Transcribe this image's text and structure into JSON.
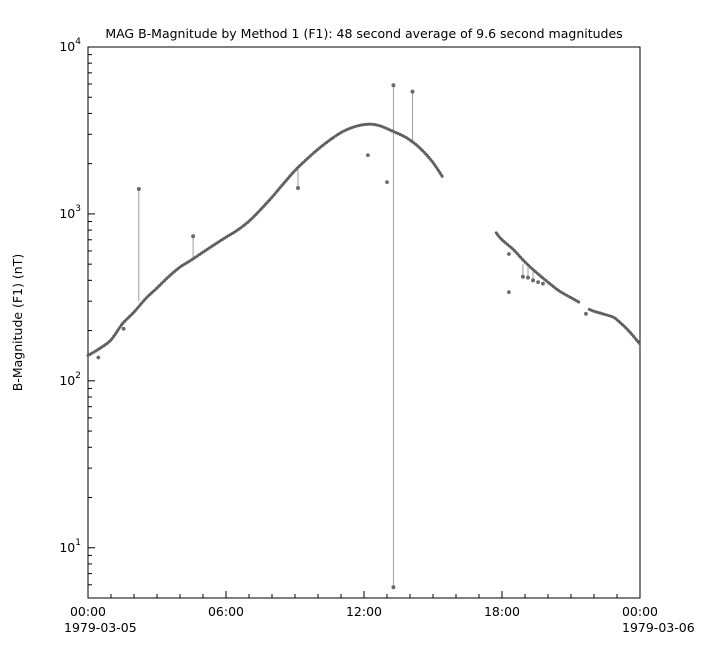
{
  "chart_data": {
    "type": "scatter",
    "title": "MAG  B-Magnitude by Method 1 (F1): 48 second average of 9.6 second magnitudes",
    "ylabel": "B-Magnitude (F1) (nT)",
    "x_axis": {
      "unit": "hours",
      "range": [
        0,
        24
      ],
      "major_ticks": [
        0,
        6,
        12,
        18,
        24
      ],
      "major_labels": [
        "00:00",
        "06:00",
        "12:00",
        "18:00",
        "00:00"
      ],
      "minor_step_hours": 1,
      "date_left": "1979-03-05",
      "date_right": "1979-03-06"
    },
    "y_axis": {
      "scale": "log",
      "range": [
        5,
        10000
      ],
      "major_ticks": [
        10,
        100,
        1000,
        10000
      ],
      "major_exponents": [
        1,
        2,
        3,
        4
      ],
      "minor_mantissas": [
        2,
        3,
        4,
        5,
        6,
        7,
        8,
        9
      ]
    },
    "style": {
      "curve_color": "#606060",
      "spike_color": "#9e9e9e",
      "dot_color": "#6a6a6a",
      "axis_color": "#000000",
      "background": "#ffffff"
    },
    "series": [
      {
        "name": "b-magnitude-segment-1",
        "points": [
          [
            0,
            142
          ],
          [
            0.5,
            156
          ],
          [
            1,
            176
          ],
          [
            1.5,
            220
          ],
          [
            2,
            258
          ],
          [
            2.5,
            310
          ],
          [
            3,
            360
          ],
          [
            3.5,
            420
          ],
          [
            4,
            480
          ],
          [
            4.5,
            530
          ],
          [
            5,
            590
          ],
          [
            5.5,
            655
          ],
          [
            6,
            725
          ],
          [
            6.5,
            800
          ],
          [
            7,
            905
          ],
          [
            7.5,
            1060
          ],
          [
            8,
            1260
          ],
          [
            8.5,
            1520
          ],
          [
            9,
            1820
          ],
          [
            9.5,
            2120
          ],
          [
            10,
            2440
          ],
          [
            10.5,
            2760
          ],
          [
            11,
            3070
          ],
          [
            11.5,
            3300
          ],
          [
            12,
            3430
          ],
          [
            12.4,
            3440
          ],
          [
            12.8,
            3330
          ],
          [
            13.2,
            3150
          ],
          [
            13.6,
            2980
          ],
          [
            14,
            2770
          ],
          [
            14.5,
            2430
          ],
          [
            15,
            2030
          ],
          [
            15.4,
            1680
          ]
        ]
      },
      {
        "name": "b-magnitude-segment-2",
        "points": [
          [
            17.75,
            770
          ],
          [
            18,
            700
          ],
          [
            18.5,
            610
          ],
          [
            19,
            515
          ],
          [
            19.5,
            445
          ],
          [
            20,
            390
          ],
          [
            20.5,
            345
          ],
          [
            21,
            315
          ],
          [
            21.4,
            293
          ]
        ]
      },
      {
        "name": "b-magnitude-segment-3",
        "points": [
          [
            21.8,
            268
          ],
          [
            22,
            261
          ],
          [
            22.3,
            254
          ],
          [
            22.8,
            242
          ],
          [
            23,
            232
          ],
          [
            23.5,
            200
          ],
          [
            24,
            166
          ]
        ]
      }
    ],
    "spikes": [
      {
        "x": 2.21,
        "from": 300,
        "to": 1410
      },
      {
        "x": 4.57,
        "from": 538,
        "to": 735
      },
      {
        "x": 9.13,
        "from": 1900,
        "to": 1430
      },
      {
        "x": 13.28,
        "from": 3090,
        "to": 5900
      },
      {
        "x": 13.28,
        "from": 3090,
        "to": 5.8
      },
      {
        "x": 14.11,
        "from": 2700,
        "to": 5400
      },
      {
        "x": 18.91,
        "from": 500,
        "to": 420
      },
      {
        "x": 19.13,
        "from": 478,
        "to": 415
      },
      {
        "x": 19.35,
        "from": 452,
        "to": 400
      }
    ],
    "outlier_points": [
      [
        0.45,
        138
      ],
      [
        1.55,
        205
      ],
      [
        12.17,
        2250
      ],
      [
        13.0,
        1550
      ],
      [
        18.3,
        575
      ],
      [
        18.3,
        340
      ],
      [
        19.57,
        390
      ],
      [
        19.78,
        382
      ],
      [
        21.65,
        252
      ]
    ]
  }
}
